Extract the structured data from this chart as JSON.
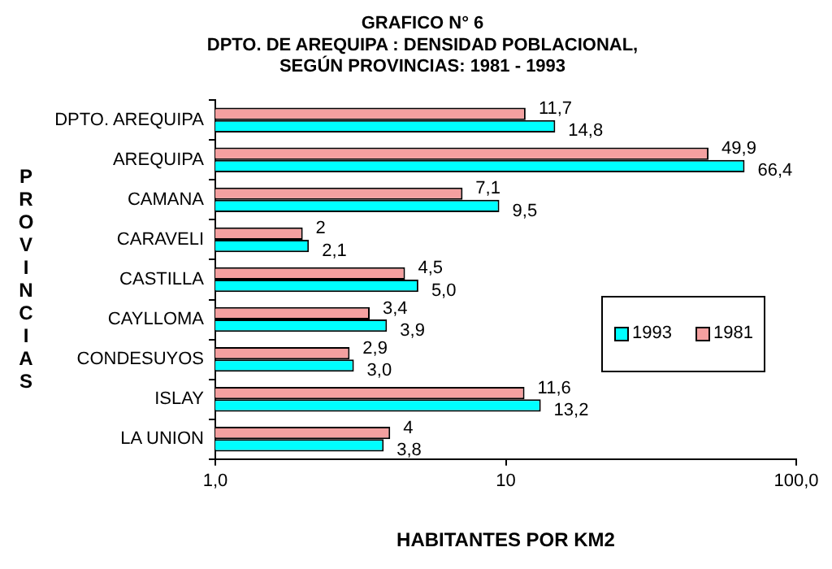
{
  "chart_data": {
    "type": "bar",
    "orientation": "horizontal",
    "title": "GRAFICO N° 6\nDPTO. DE AREQUIPA : DENSIDAD POBLACIONAL,\nSEGÚN PROVINCIAS: 1981 - 1993",
    "xlabel": "HABITANTES POR KM2",
    "ylabel": "PROVINCIAS",
    "categories": [
      "DPTO. AREQUIPA",
      "AREQUIPA",
      "CAMANA",
      "CARAVELI",
      "CASTILLA",
      "CAYLLOMA",
      "CONDESUYOS",
      "ISLAY",
      "LA UNION"
    ],
    "series": [
      {
        "name": "1981",
        "color": "#f4a0a0",
        "values": [
          11.7,
          49.9,
          7.1,
          2,
          4.5,
          3.4,
          2.9,
          11.6,
          4
        ],
        "value_labels": [
          "11,7",
          "49,9",
          "7,1",
          "2",
          "4,5",
          "3,4",
          "2,9",
          "11,6",
          "4"
        ]
      },
      {
        "name": "1993",
        "color": "#00ffff",
        "values": [
          14.8,
          66.4,
          9.5,
          2.1,
          5.0,
          3.9,
          3.0,
          13.2,
          3.8
        ],
        "value_labels": [
          "14,8",
          "66,4",
          "9,5",
          "2,1",
          "5,0",
          "3,9",
          "3,0",
          "13,2",
          "3,8"
        ]
      }
    ],
    "log": "x",
    "xlim": [
      1,
      100
    ],
    "xticks": [
      {
        "value": 1,
        "label": "1,0"
      },
      10,
      {
        "value": 100,
        "label": "100,0"
      }
    ],
    "grid": false,
    "legend": "right"
  }
}
